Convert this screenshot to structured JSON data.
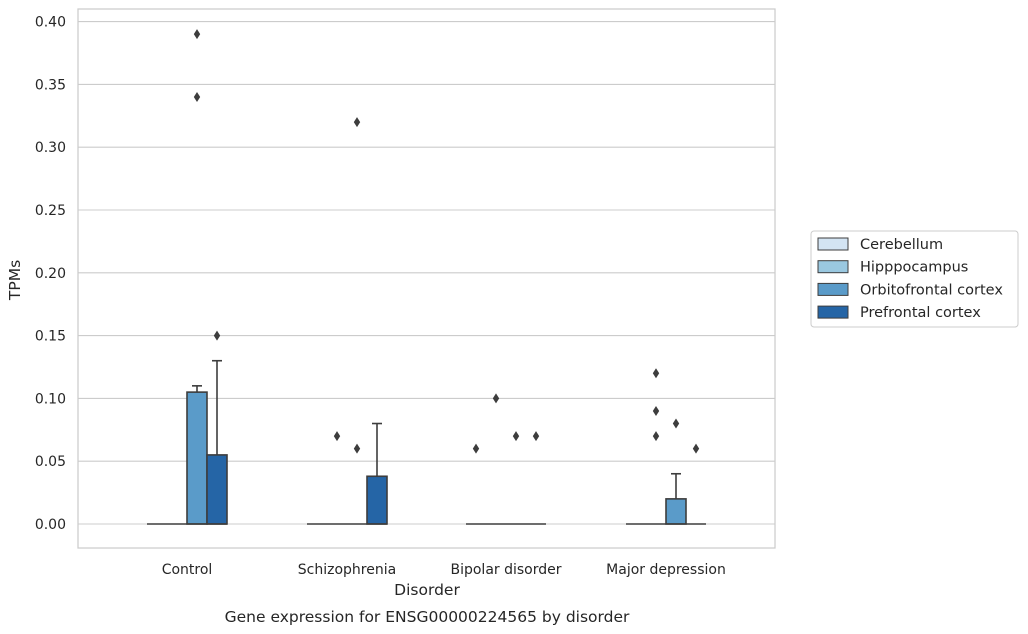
{
  "chart_data": {
    "type": "box",
    "caption": "Gene expression for ENSG00000224565 by disorder",
    "xlabel": "Disorder",
    "ylabel": "TPMs",
    "ylim": [
      -0.019,
      0.41
    ],
    "yticks": [
      0.0,
      0.05,
      0.1,
      0.15,
      0.2,
      0.25,
      0.3,
      0.35,
      0.4
    ],
    "ytick_labels": [
      "0.00",
      "0.05",
      "0.10",
      "0.15",
      "0.20",
      "0.25",
      "0.30",
      "0.35",
      "0.40"
    ],
    "grid": true,
    "legend_position": "right",
    "categories": [
      "Control",
      "Schizophrenia",
      "Bipolar disorder",
      "Major depression"
    ],
    "series": [
      {
        "name": "Cerebellum",
        "color": "#d3e4f3",
        "boxes": [
          {
            "q1": 0,
            "median": 0,
            "q3": 0,
            "whisker_low": 0,
            "whisker_high": 0,
            "outliers": []
          },
          {
            "q1": 0,
            "median": 0,
            "q3": 0,
            "whisker_low": 0,
            "whisker_high": 0,
            "outliers": []
          },
          {
            "q1": 0,
            "median": 0,
            "q3": 0,
            "whisker_low": 0,
            "whisker_high": 0,
            "outliers": [
              0.06
            ]
          },
          {
            "q1": 0,
            "median": 0,
            "q3": 0,
            "whisker_low": 0,
            "whisker_high": 0,
            "outliers": []
          }
        ]
      },
      {
        "name": "Hipppocampus",
        "color": "#9ac8e0",
        "boxes": [
          {
            "q1": 0,
            "median": 0,
            "q3": 0,
            "whisker_low": 0,
            "whisker_high": 0,
            "outliers": []
          },
          {
            "q1": 0,
            "median": 0,
            "q3": 0,
            "whisker_low": 0,
            "whisker_high": 0,
            "outliers": [
              0.07
            ]
          },
          {
            "q1": 0,
            "median": 0,
            "q3": 0,
            "whisker_low": 0,
            "whisker_high": 0,
            "outliers": [
              0.1
            ]
          },
          {
            "q1": 0,
            "median": 0,
            "q3": 0,
            "whisker_low": 0,
            "whisker_high": 0,
            "outliers": [
              0.07,
              0.09,
              0.12
            ]
          }
        ]
      },
      {
        "name": "Orbitofrontal cortex",
        "color": "#5a9bc9",
        "boxes": [
          {
            "q1": 0,
            "median": 0,
            "q3": 0.105,
            "whisker_low": 0,
            "whisker_high": 0.11,
            "outliers": [
              0.34,
              0.39
            ]
          },
          {
            "q1": 0,
            "median": 0,
            "q3": 0,
            "whisker_low": 0,
            "whisker_high": 0,
            "outliers": [
              0.06,
              0.32
            ]
          },
          {
            "q1": 0,
            "median": 0,
            "q3": 0,
            "whisker_low": 0,
            "whisker_high": 0,
            "outliers": [
              0.07
            ]
          },
          {
            "q1": 0,
            "median": 0,
            "q3": 0.02,
            "whisker_low": 0,
            "whisker_high": 0.04,
            "outliers": [
              0.08
            ]
          }
        ]
      },
      {
        "name": "Prefrontal cortex",
        "color": "#2565a6",
        "boxes": [
          {
            "q1": 0,
            "median": 0,
            "q3": 0.055,
            "whisker_low": 0,
            "whisker_high": 0.13,
            "outliers": [
              0.15
            ]
          },
          {
            "q1": 0,
            "median": 0,
            "q3": 0.038,
            "whisker_low": 0,
            "whisker_high": 0.08,
            "outliers": []
          },
          {
            "q1": 0,
            "median": 0,
            "q3": 0,
            "whisker_low": 0,
            "whisker_high": 0,
            "outliers": [
              0.07
            ]
          },
          {
            "q1": 0,
            "median": 0,
            "q3": 0,
            "whisker_low": 0,
            "whisker_high": 0,
            "outliers": [
              0.06
            ]
          }
        ]
      }
    ]
  }
}
